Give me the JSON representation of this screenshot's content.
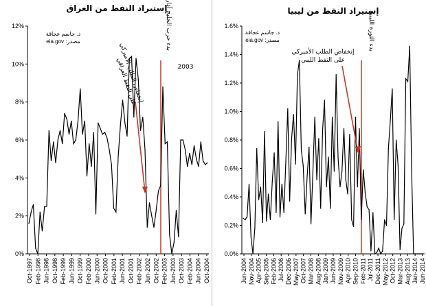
{
  "chart_data": [
    {
      "type": "line",
      "title": "إستيراد النفط من العراق",
      "xlabel": "",
      "ylabel": "",
      "ylim": [
        0,
        12
      ],
      "yticks": [
        "0%",
        "2%",
        "4%",
        "6%",
        "8%",
        "10%",
        "12%"
      ],
      "grid": false,
      "xtick_labels": [
        "Oct-1997",
        "Feb-1998",
        "Jun-1998",
        "Oct-1998",
        "Feb-1999",
        "Jun-1999",
        "Oct-1999",
        "Feb-2000",
        "Jun-2000",
        "Oct-2000",
        "Feb-2001",
        "Jun-2001",
        "Oct-2001",
        "Feb-2002",
        "Jun-2002",
        "Oct-2002",
        "Feb-2003",
        "Jun-2003",
        "Oct-2003",
        "Feb-2004",
        "Jun-2004",
        "Oct-2004"
      ],
      "series": [
        {
          "color": "#000000",
          "values": [
            1.6,
            2.2,
            2.6,
            0.3,
            0,
            2.2,
            1.2,
            2.5,
            2.5,
            6.5,
            4.9,
            5.9,
            4.8,
            6.0,
            6.5,
            5.8,
            7.4,
            7.1,
            6.3,
            7.0,
            5.8,
            6.0,
            7.0,
            8.7,
            6.3,
            7.0,
            4.1,
            5.8,
            4.6,
            6.4,
            2.1,
            6.9,
            6.6,
            6.3,
            6.4,
            6.1,
            5.5,
            4.7,
            2.4,
            2.2,
            5.1,
            6.8,
            8.1,
            6.9,
            6.2,
            10.3,
            10.4,
            7.2,
            10.3,
            9.2,
            6.5,
            7.2,
            5.5,
            1.4,
            2.7,
            2.0,
            1.4,
            2.3,
            3.3,
            3.6,
            8.8,
            5.8,
            5.9,
            1.0,
            0,
            0.6,
            2.3,
            0.9,
            6.0,
            6.0,
            5.5,
            4.6,
            5.3,
            4.7,
            5.7,
            5.0,
            4.6,
            5.9,
            4.9,
            4.7,
            4.8
          ]
        }
      ],
      "annotations": {
        "author": "د. جاسم عجاقة",
        "source": "مصدر: eia.gov",
        "event_line": "بدء حرب الخليج آذار",
        "event_year": "2003",
        "event_color": "#c0392b",
        "arrow_lines": [
          "إنخفاض الطلب الأميركي",
          "على النفط العراقي"
        ],
        "arrow_color": "#c0392b"
      }
    },
    {
      "type": "line",
      "title": "إستيراد النفط من ليبيا",
      "xlabel": "",
      "ylabel": "",
      "ylim": [
        0,
        1.6
      ],
      "yticks": [
        "0.0%",
        "0.2%",
        "0.4%",
        "0.6%",
        "0.8%",
        "1.0%",
        "1.2%",
        "1.4%",
        "1.6%"
      ],
      "grid": false,
      "xtick_labels": [
        "Jun-2004",
        "Nov-2004",
        "Apr-2005",
        "Sep-2005",
        "Feb-2006",
        "Jul-2006",
        "Dec-2006",
        "May-2007",
        "Oct-2007",
        "Mar-2008",
        "Aug-2008",
        "Jan-2009",
        "Jun-2009",
        "Nov-2009",
        "Apr-2010",
        "Sep-2010",
        "Feb-2011",
        "Jul-2011",
        "Dec-2011",
        "May-2012",
        "Oct-2012",
        "Mar-2013",
        "Aug-2013",
        "Jan-2014",
        "Jun-2014"
      ],
      "series": [
        {
          "color": "#000000",
          "values": [
            0.25,
            0.24,
            0.26,
            0.49,
            0.12,
            0,
            0.18,
            0.74,
            0.38,
            0.47,
            0.22,
            0.86,
            0.23,
            0.42,
            0.24,
            0.51,
            0.71,
            0.29,
            0.93,
            0.26,
            0.49,
            0.29,
            0.65,
            1.02,
            0.37,
            0.81,
            0.98,
            0.63,
            1.26,
            1.36,
            0.73,
            0.62,
            0.28,
            0.54,
            0.75,
            0.21,
            0.58,
            0.96,
            0.52,
            0.81,
            0.32,
            0.87,
            1.08,
            0.47,
            0.68,
            0.32,
            0.96,
            0.58,
            1.26,
            0.68,
            0.47,
            0.58,
            0.88,
            0.52,
            0.42,
            0.84,
            0.24,
            0.19,
            0.96,
            0.47,
            0.88,
            0.24,
            0.59,
            0.43,
            0.33,
            0.31,
            0.02,
            0.29,
            0,
            0.01,
            0.04,
            0,
            0.02,
            0.24,
            0.2,
            0.74,
            0.94,
            1.16,
            0.24,
            0.8,
            0.62,
            0.03,
            0.18,
            0.21,
            1.23,
            1.21,
            1.46,
            0.58,
            0,
            0,
            0,
            0,
            0,
            0
          ]
        }
      ],
      "annotations": {
        "author": "د. جاسم عجاقة",
        "source": "مصدر: eia.gov",
        "event_line": "بدء الثورة الليبية",
        "event_color": "#c0392b",
        "arrow_lines": [
          "إنخفاض الطلب الأميركي",
          "على النفط الليبي"
        ],
        "arrow_color": "#c0392b"
      }
    }
  ]
}
